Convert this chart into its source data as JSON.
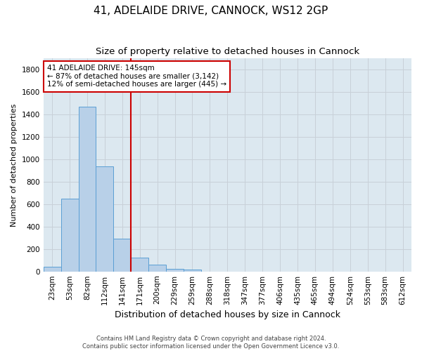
{
  "title": "41, ADELAIDE DRIVE, CANNOCK, WS12 2GP",
  "subtitle": "Size of property relative to detached houses in Cannock",
  "xlabel": "Distribution of detached houses by size in Cannock",
  "ylabel": "Number of detached properties",
  "bin_labels": [
    "23sqm",
    "53sqm",
    "82sqm",
    "112sqm",
    "141sqm",
    "171sqm",
    "200sqm",
    "229sqm",
    "259sqm",
    "288sqm",
    "318sqm",
    "347sqm",
    "377sqm",
    "406sqm",
    "435sqm",
    "465sqm",
    "494sqm",
    "524sqm",
    "553sqm",
    "583sqm",
    "612sqm"
  ],
  "bar_values": [
    40,
    650,
    1470,
    935,
    290,
    125,
    60,
    22,
    15,
    0,
    0,
    0,
    0,
    0,
    0,
    0,
    0,
    0,
    0,
    0,
    0
  ],
  "bar_color": "#b8d0e8",
  "bar_edge_color": "#5a9fd4",
  "vline_color": "#cc0000",
  "annotation_text": "41 ADELAIDE DRIVE: 145sqm\n← 87% of detached houses are smaller (3,142)\n12% of semi-detached houses are larger (445) →",
  "annotation_box_color": "#ffffff",
  "annotation_box_edge_color": "#cc0000",
  "ylim": [
    0,
    1900
  ],
  "yticks": [
    0,
    200,
    400,
    600,
    800,
    1000,
    1200,
    1400,
    1600,
    1800
  ],
  "grid_color": "#c8d0d8",
  "bg_color": "#dce8f0",
  "footer_text": "Contains HM Land Registry data © Crown copyright and database right 2024.\nContains public sector information licensed under the Open Government Licence v3.0.",
  "title_fontsize": 11,
  "subtitle_fontsize": 9.5,
  "xlabel_fontsize": 9,
  "ylabel_fontsize": 8,
  "tick_fontsize": 7.5,
  "footer_fontsize": 6
}
